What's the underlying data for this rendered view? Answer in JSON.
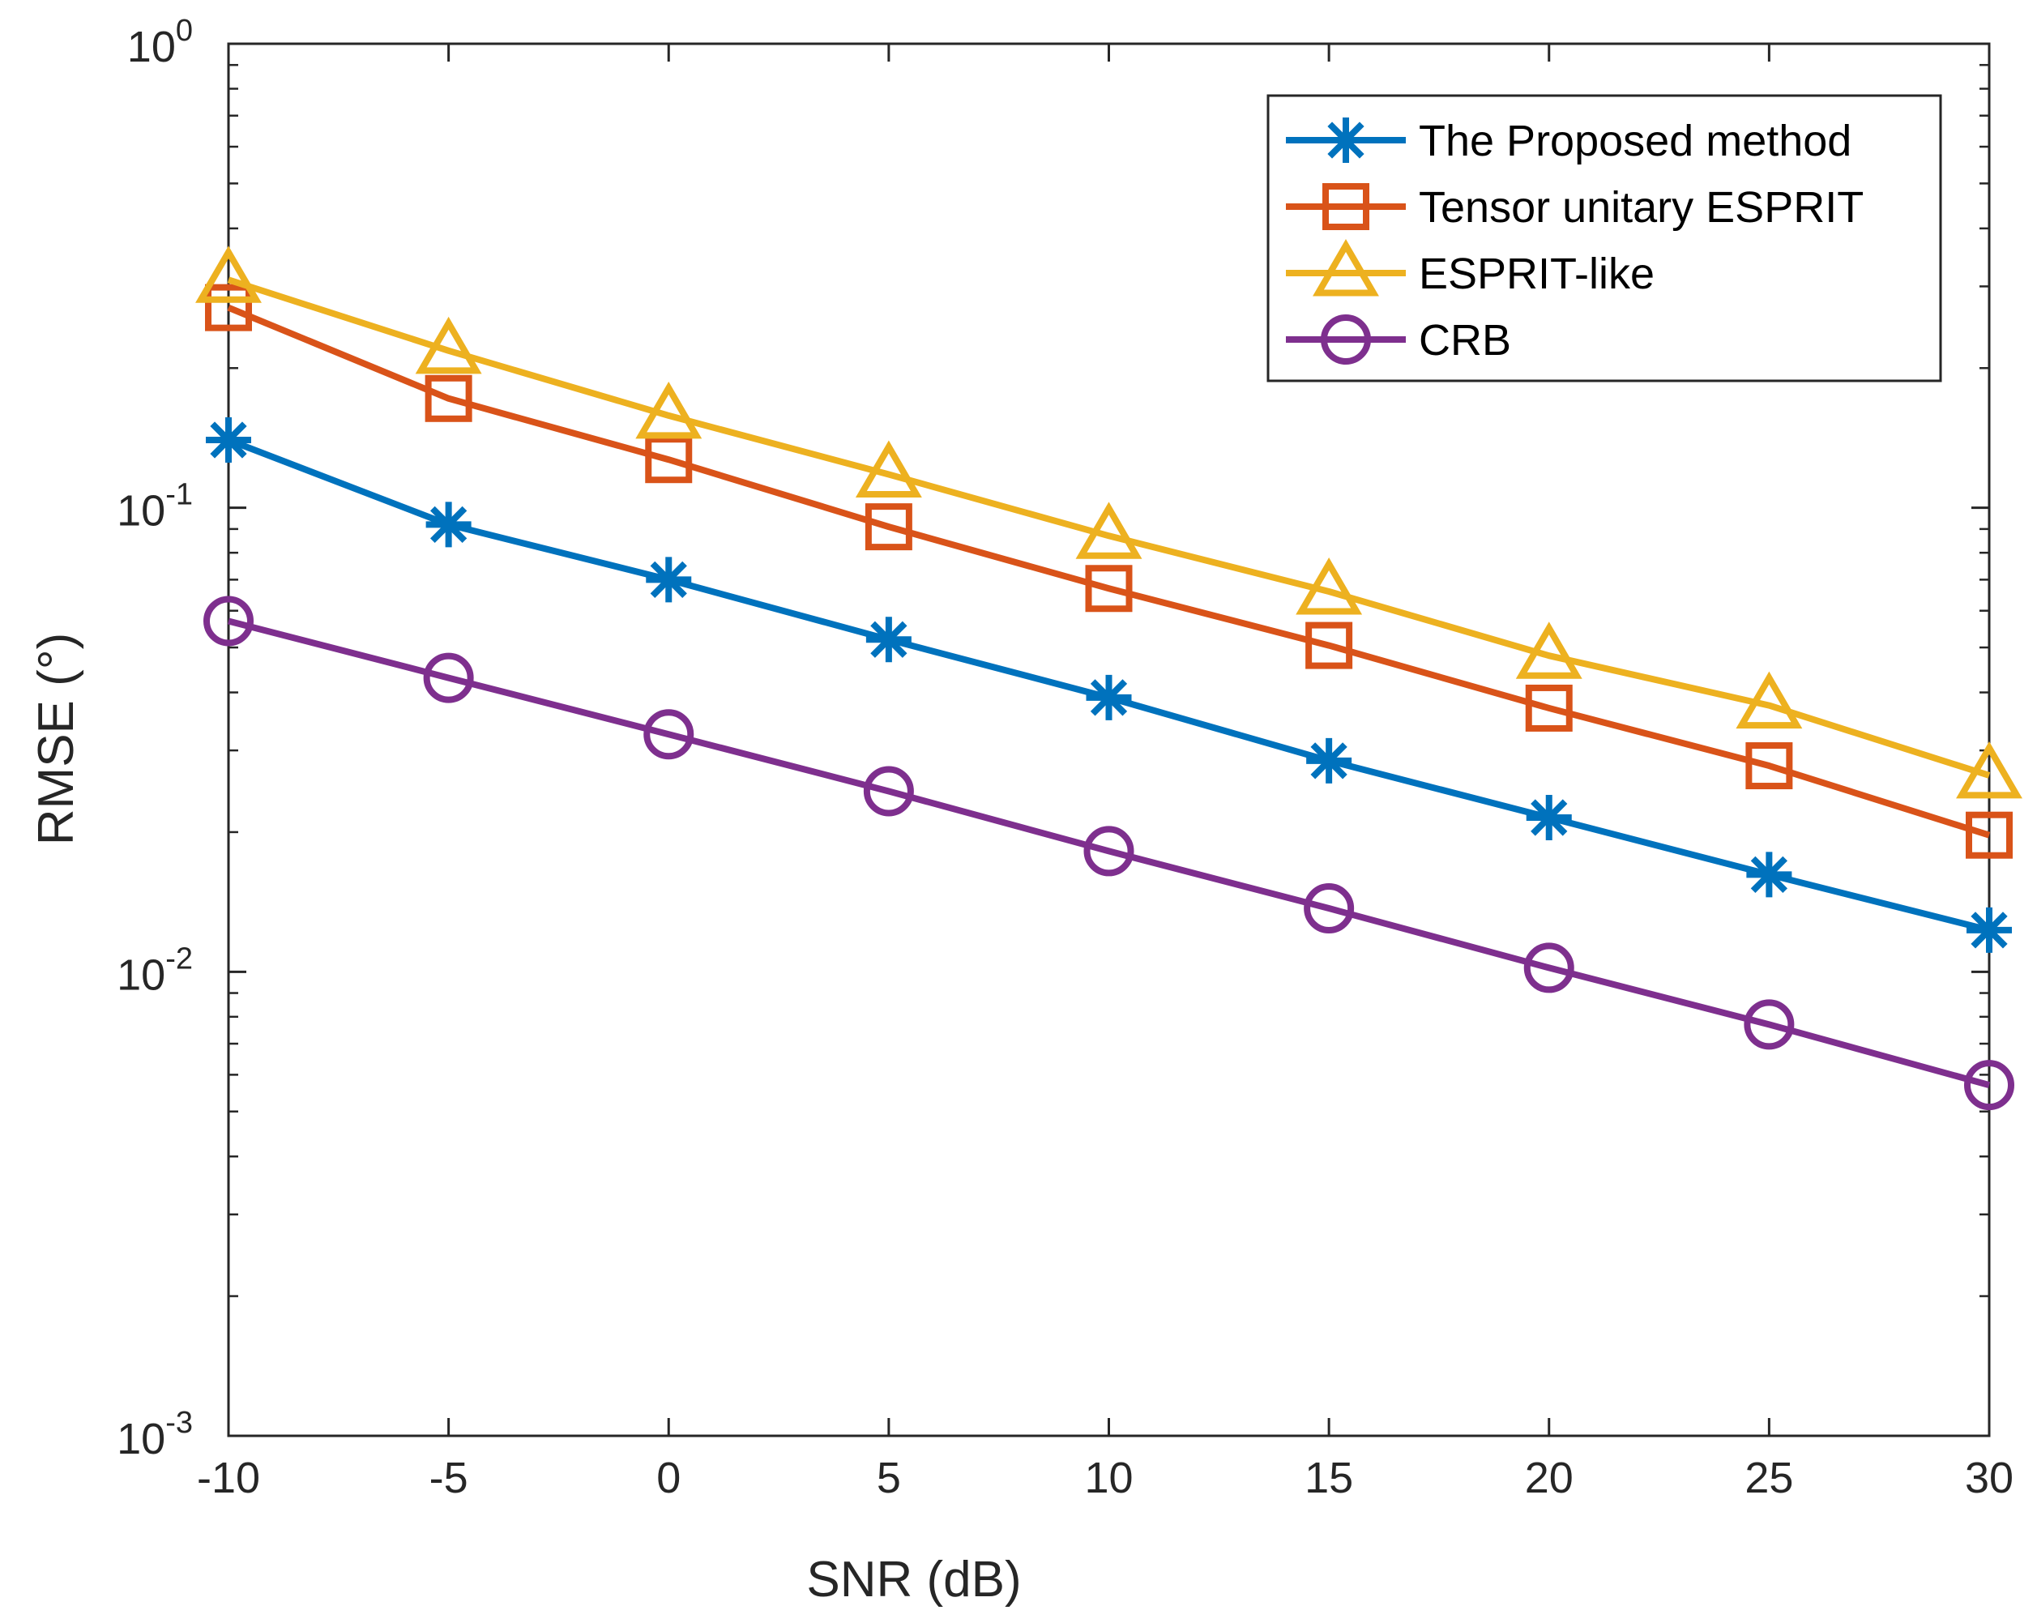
{
  "chart_data": {
    "type": "line",
    "title": "",
    "xlabel": "SNR (dB)",
    "ylabel": "RMSE (°)",
    "xscale": "linear",
    "yscale": "log",
    "xlim": [
      -10,
      30
    ],
    "ylim": [
      0.001,
      1
    ],
    "grid": false,
    "legend_location": "top-right",
    "x": [
      -10,
      -5,
      0,
      5,
      10,
      15,
      20,
      25,
      30
    ],
    "x_tick_labels": [
      "-10",
      "-5",
      "0",
      "5",
      "10",
      "15",
      "20",
      "25",
      "30"
    ],
    "y_ticks": [
      {
        "value": 0.001,
        "base": "10",
        "exponent": "-3"
      },
      {
        "value": 0.01,
        "base": "10",
        "exponent": "-2"
      },
      {
        "value": 0.1,
        "base": "10",
        "exponent": "-1"
      },
      {
        "value": 1,
        "base": "10",
        "exponent": "0"
      }
    ],
    "series": [
      {
        "name": "The Proposed method",
        "color": "#0072BD",
        "marker": "asterisk",
        "values": [
          0.14,
          0.092,
          0.07,
          0.052,
          0.039,
          0.0285,
          0.0215,
          0.0162,
          0.0123
        ]
      },
      {
        "name": "Tensor unitary ESPRIT",
        "color": "#D95319",
        "marker": "square",
        "values": [
          0.27,
          0.172,
          0.127,
          0.091,
          0.067,
          0.0505,
          0.037,
          0.0278,
          0.0197
        ]
      },
      {
        "name": "ESPRIT-like",
        "color": "#EDB120",
        "marker": "triangle",
        "values": [
          0.31,
          0.218,
          0.158,
          0.118,
          0.087,
          0.066,
          0.048,
          0.0375,
          0.0265
        ]
      },
      {
        "name": "CRB",
        "color": "#7E2F8E",
        "marker": "circle",
        "values": [
          0.057,
          0.043,
          0.0325,
          0.0245,
          0.0182,
          0.0137,
          0.0102,
          0.0077,
          0.0057
        ]
      }
    ]
  }
}
